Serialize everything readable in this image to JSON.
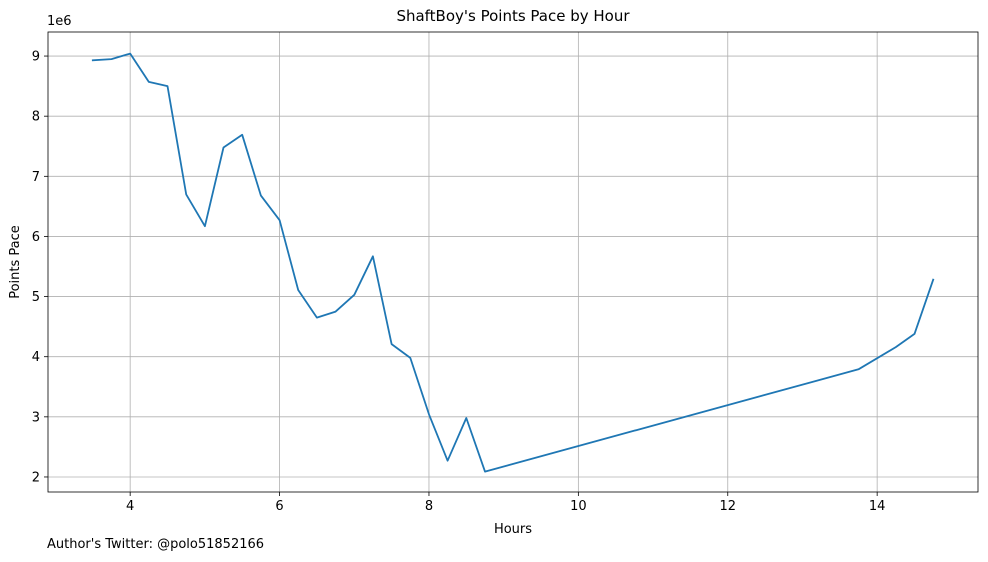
{
  "chart_data": {
    "type": "line",
    "title": "ShaftBoy's Points Pace by Hour",
    "xlabel": "Hours",
    "ylabel": "Points Pace",
    "y_scale_label": "1e6",
    "xlim": [
      2.9,
      15.35
    ],
    "ylim": [
      1.75,
      9.4
    ],
    "x_ticks": [
      4,
      6,
      8,
      10,
      12,
      14
    ],
    "y_ticks": [
      2,
      3,
      4,
      5,
      6,
      7,
      8,
      9
    ],
    "grid": true,
    "line_color": "#1f77b4",
    "series": [
      {
        "x": [
          3.5,
          3.75,
          4.0,
          4.25,
          4.5,
          4.75,
          5.0,
          5.25,
          5.5,
          5.75,
          6.0,
          6.25,
          6.5,
          6.75,
          7.0,
          7.25,
          7.5,
          7.75,
          8.0,
          8.25,
          8.5,
          8.75,
          13.75,
          14.25,
          14.5,
          14.75
        ],
        "y": [
          8.93,
          8.95,
          9.04,
          8.57,
          8.5,
          6.7,
          6.17,
          7.48,
          7.69,
          6.68,
          6.27,
          5.11,
          4.65,
          4.75,
          5.03,
          5.67,
          4.21,
          3.98,
          3.04,
          2.27,
          2.98,
          2.09,
          3.79,
          4.16,
          4.38,
          5.28
        ]
      }
    ]
  },
  "footer": {
    "text": "Author's Twitter: @polo51852166"
  }
}
